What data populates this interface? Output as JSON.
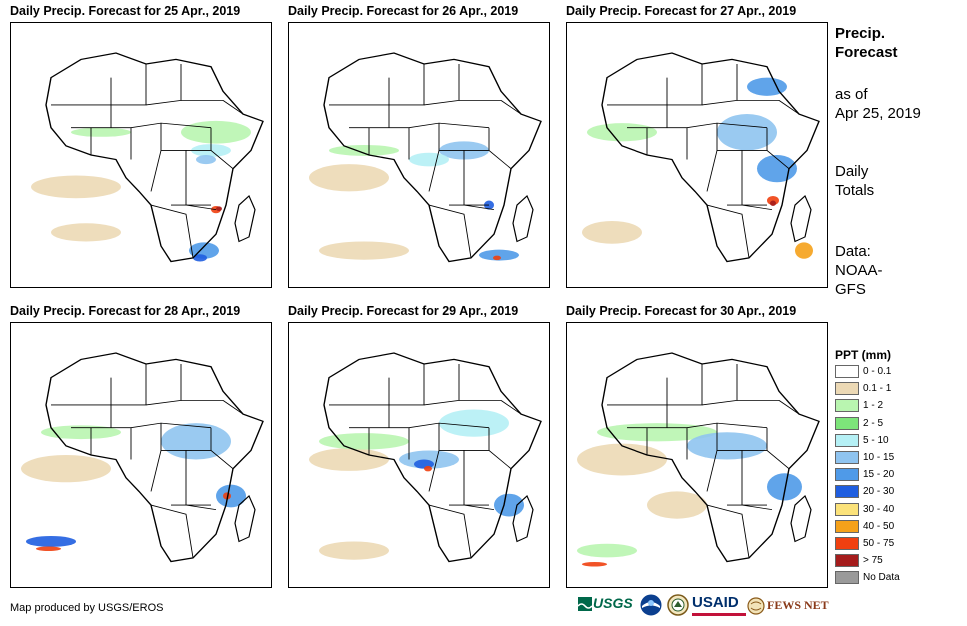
{
  "panels": [
    {
      "title": "Daily Precip. Forecast for 25 Apr., 2019"
    },
    {
      "title": "Daily Precip. Forecast for 26 Apr., 2019"
    },
    {
      "title": "Daily Precip. Forecast for 27 Apr., 2019"
    },
    {
      "title": "Daily Precip. Forecast for 28 Apr., 2019"
    },
    {
      "title": "Daily Precip. Forecast for 29 Apr., 2019"
    },
    {
      "title": "Daily Precip. Forecast for 30 Apr., 2019"
    }
  ],
  "sidebar": {
    "heading_line1": "Precip.",
    "heading_line2": "Forecast",
    "asof_line1": "as of",
    "asof_line2": "Apr 25, 2019",
    "totals_line1": "Daily",
    "totals_line2": "Totals",
    "data_line1": "Data:",
    "data_line2": "NOAA-",
    "data_line3": "GFS"
  },
  "legend": {
    "title": "PPT (mm)",
    "items": [
      {
        "label": "0 - 0.1",
        "color": "#ffffff"
      },
      {
        "label": "0.1 - 1",
        "color": "#ecd9b5"
      },
      {
        "label": "1 - 2",
        "color": "#b9f5b0"
      },
      {
        "label": "2 - 5",
        "color": "#7de57a"
      },
      {
        "label": "5 - 10",
        "color": "#b5f0f5"
      },
      {
        "label": "10 - 15",
        "color": "#8fc4f0"
      },
      {
        "label": "15 - 20",
        "color": "#4f9ae8"
      },
      {
        "label": "20 - 30",
        "color": "#1f5ee0"
      },
      {
        "label": "30 - 40",
        "color": "#fbe27a"
      },
      {
        "label": "40 - 50",
        "color": "#f5a11a"
      },
      {
        "label": "50 - 75",
        "color": "#f04010"
      },
      {
        "label": "> 75",
        "color": "#a51c1c"
      },
      {
        "label": "No Data",
        "color": "#9a9a9a"
      }
    ]
  },
  "footer": {
    "credit": "Map produced by USGS/EROS",
    "logos": [
      "USGS",
      "NOAA",
      "DOI",
      "USAID",
      "FEWS NET"
    ]
  }
}
